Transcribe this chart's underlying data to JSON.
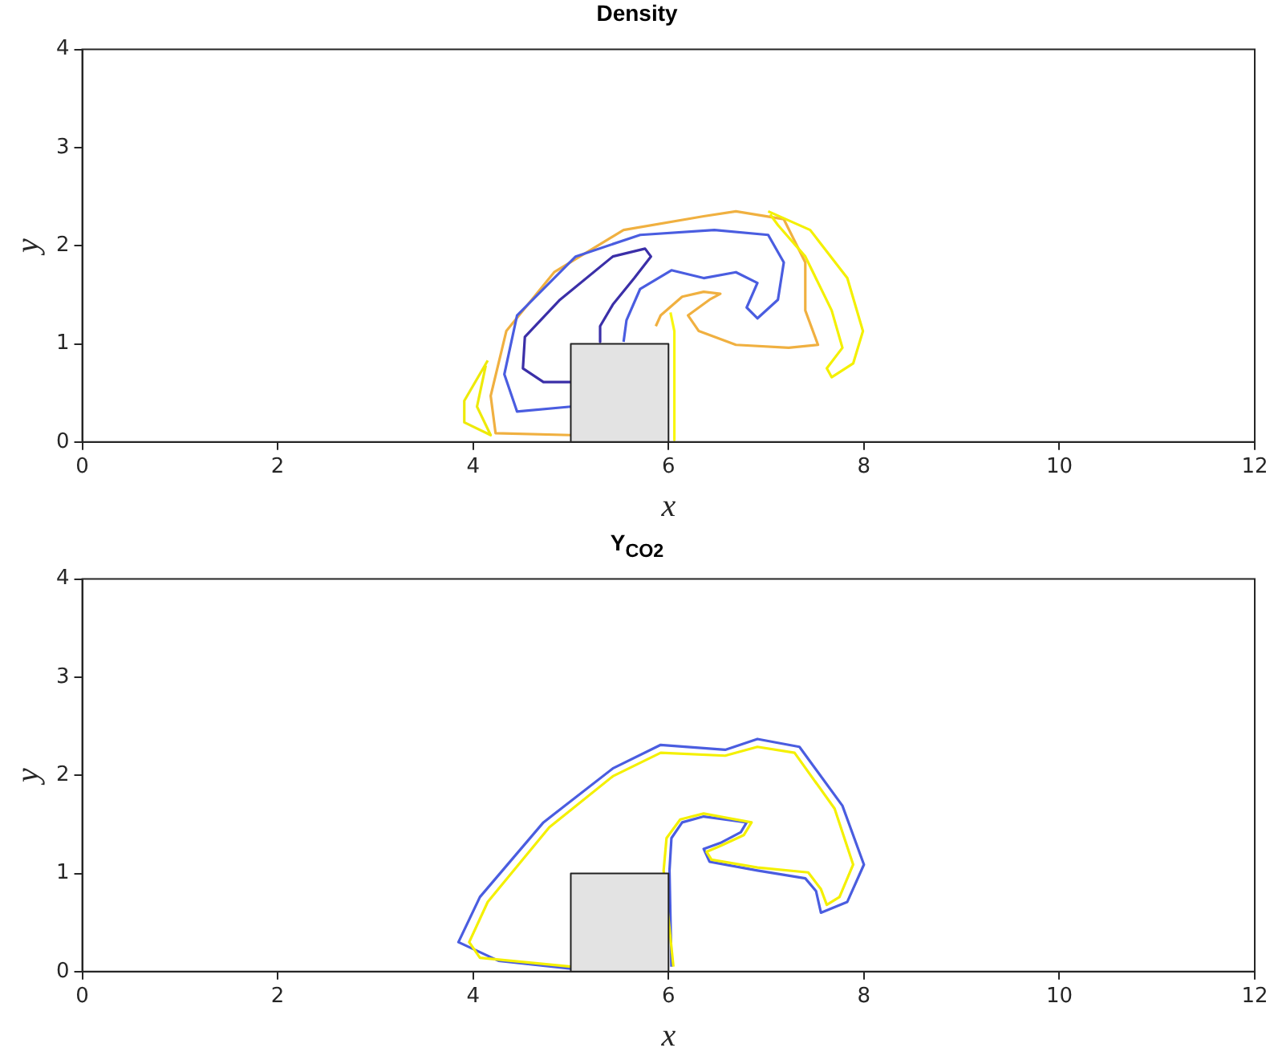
{
  "chart_data": [
    {
      "type": "line",
      "title": "Density",
      "xlabel": "x",
      "ylabel": "y",
      "xlim": [
        0,
        12
      ],
      "ylim": [
        0,
        4
      ],
      "xticks": [
        0,
        2,
        4,
        6,
        8,
        10,
        12
      ],
      "yticks": [
        0,
        1,
        2,
        3,
        4
      ],
      "grid": false,
      "legend": false,
      "marker": "none",
      "series": [
        {
          "color": "#f0b040",
          "x": [
            5.0,
            4.23,
            4.18,
            4.34,
            4.83,
            5.54,
            6.36,
            6.69,
            7.18,
            7.4,
            7.4,
            7.53,
            7.23,
            6.69,
            6.31,
            6.2,
            6.42,
            6.53,
            6.36,
            6.14,
            5.92,
            5.87
          ],
          "values": [
            0.07,
            0.09,
            0.47,
            1.13,
            1.73,
            2.16,
            2.3,
            2.35,
            2.27,
            1.83,
            1.34,
            0.99,
            0.96,
            0.99,
            1.13,
            1.29,
            1.45,
            1.51,
            1.53,
            1.48,
            1.29,
            1.18
          ]
        },
        {
          "color": "#4a5de0",
          "x": [
            5.0,
            4.45,
            4.32,
            4.45,
            5.05,
            5.71,
            6.47,
            7.02,
            7.18,
            7.12,
            6.91,
            6.8,
            6.91,
            6.69,
            6.36,
            6.03,
            5.71,
            5.57,
            5.54
          ],
          "values": [
            0.36,
            0.31,
            0.69,
            1.29,
            1.89,
            2.11,
            2.16,
            2.11,
            1.83,
            1.45,
            1.26,
            1.37,
            1.62,
            1.73,
            1.67,
            1.75,
            1.56,
            1.24,
            1.02
          ]
        },
        {
          "color": "#3b2fa8",
          "x": [
            5.0,
            4.72,
            4.51,
            4.53,
            4.89,
            5.43,
            5.76,
            5.82,
            5.65,
            5.43,
            5.3,
            5.3
          ],
          "values": [
            0.61,
            0.61,
            0.75,
            1.07,
            1.45,
            1.89,
            1.97,
            1.89,
            1.67,
            1.4,
            1.18,
            1.02
          ]
        },
        {
          "color": "#f4f000",
          "x": [
            7.02,
            7.45,
            7.83,
            7.99,
            7.89,
            7.67,
            7.62,
            7.78,
            7.67,
            7.4,
            7.12,
            7.04
          ],
          "values": [
            2.35,
            2.16,
            1.67,
            1.13,
            0.8,
            0.66,
            0.75,
            0.96,
            1.34,
            1.89,
            2.21,
            2.32
          ]
        },
        {
          "color": "#eeea08",
          "x": [
            4.15,
            3.91,
            3.91,
            4.18,
            4.04,
            4.13
          ],
          "values": [
            0.83,
            0.42,
            0.2,
            0.07,
            0.36,
            0.78
          ]
        },
        {
          "color": "#f8f610",
          "x": [
            6.02,
            6.06,
            6.06
          ],
          "values": [
            1.32,
            1.13,
            0.02
          ]
        },
        {
          "type": "area",
          "color": "#e3e3e3",
          "x": [
            5,
            5,
            6,
            6
          ],
          "values": [
            0,
            1,
            1,
            0
          ]
        }
      ]
    },
    {
      "type": "line",
      "title": "Y$_{CO2}$",
      "xlabel": "x",
      "ylabel": "y",
      "xlim": [
        0,
        12
      ],
      "ylim": [
        0,
        4
      ],
      "xticks": [
        0,
        2,
        4,
        6,
        8,
        10,
        12
      ],
      "yticks": [
        0,
        1,
        2,
        3,
        4
      ],
      "grid": false,
      "legend": false,
      "marker": "none",
      "series": [
        {
          "color": "#4a5de0",
          "x": [
            5.0,
            4.26,
            3.85,
            4.07,
            4.72,
            5.43,
            5.92,
            6.58,
            6.91,
            7.34,
            7.78,
            8.0,
            7.83,
            7.56,
            7.51,
            7.4,
            6.91,
            6.42,
            6.36,
            6.53,
            6.74,
            6.8,
            6.36,
            6.14,
            6.03,
            6.01,
            6.03
          ],
          "values": [
            0.03,
            0.11,
            0.3,
            0.76,
            1.52,
            2.07,
            2.31,
            2.26,
            2.37,
            2.29,
            1.69,
            1.09,
            0.71,
            0.6,
            0.82,
            0.95,
            1.03,
            1.12,
            1.25,
            1.31,
            1.42,
            1.52,
            1.58,
            1.52,
            1.36,
            1.03,
            0.05
          ]
        },
        {
          "color": "#f4f000",
          "x": [
            5.0,
            4.07,
            3.96,
            4.15,
            4.78,
            5.43,
            5.92,
            6.58,
            6.91,
            7.29,
            7.7,
            7.89,
            7.75,
            7.62,
            7.56,
            7.43,
            6.91,
            6.44,
            6.39,
            6.53,
            6.77,
            6.85,
            6.36,
            6.12,
            5.98,
            5.95,
            6.05
          ],
          "values": [
            0.05,
            0.14,
            0.3,
            0.71,
            1.47,
            1.99,
            2.23,
            2.2,
            2.29,
            2.23,
            1.66,
            1.09,
            0.76,
            0.68,
            0.84,
            1.01,
            1.06,
            1.14,
            1.22,
            1.28,
            1.39,
            1.52,
            1.61,
            1.55,
            1.36,
            1.03,
            0.05
          ]
        },
        {
          "type": "area",
          "color": "#e3e3e3",
          "x": [
            5,
            5,
            6,
            6
          ],
          "values": [
            0,
            1,
            1,
            0
          ]
        }
      ]
    }
  ]
}
